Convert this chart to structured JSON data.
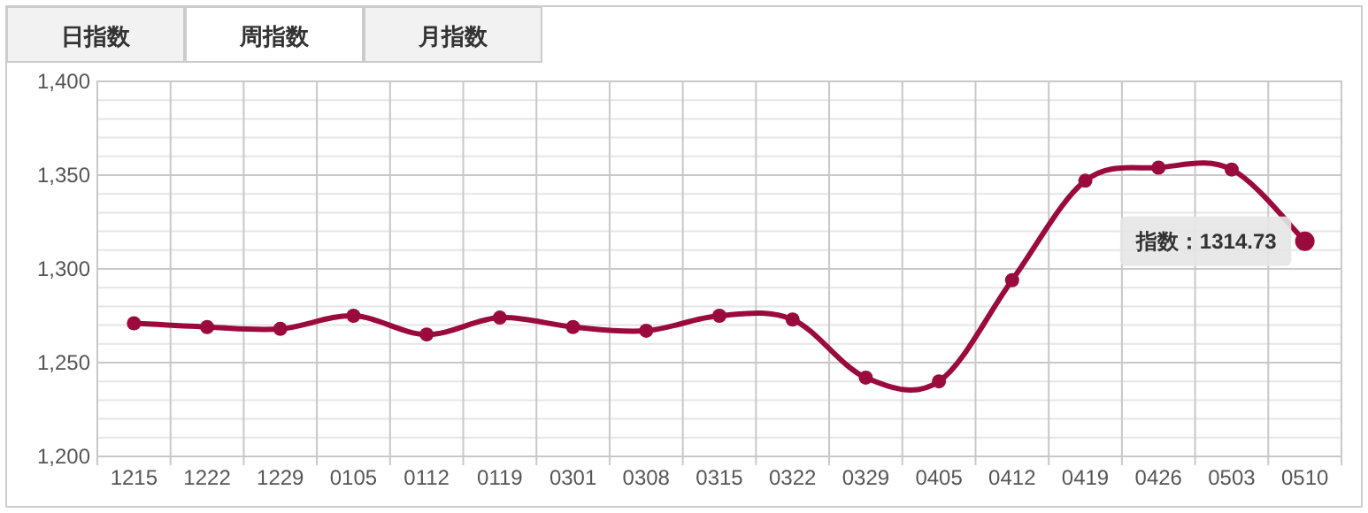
{
  "chart_data": {
    "type": "line",
    "categories": [
      "1215",
      "1222",
      "1229",
      "0105",
      "0112",
      "0119",
      "0301",
      "0308",
      "0315",
      "0322",
      "0329",
      "0405",
      "0412",
      "0419",
      "0426",
      "0503",
      "0510"
    ],
    "series": [
      {
        "color": "#9b0a3c",
        "values": [
          1271,
          1269,
          1268,
          1275,
          1265,
          1274,
          1269,
          1267,
          1275,
          1273,
          1242,
          1240,
          1294,
          1347,
          1354,
          1353,
          1314.73
        ]
      }
    ],
    "ylim": [
      1200,
      1400
    ],
    "yticks": [
      {
        "value": 1200,
        "label": "1,200"
      },
      {
        "value": 1210,
        "label": null
      },
      {
        "value": 1220,
        "label": null
      },
      {
        "value": 1230,
        "label": null
      },
      {
        "value": 1240,
        "label": null
      },
      {
        "value": 1250,
        "label": "1,250"
      },
      {
        "value": 1260,
        "label": null
      },
      {
        "value": 1270,
        "label": null
      },
      {
        "value": 1280,
        "label": null
      },
      {
        "value": 1290,
        "label": null
      },
      {
        "value": 1300,
        "label": "1,300"
      },
      {
        "value": 1310,
        "label": null
      },
      {
        "value": 1320,
        "label": null
      },
      {
        "value": 1330,
        "label": null
      },
      {
        "value": 1340,
        "label": null
      },
      {
        "value": 1350,
        "label": "1,350"
      },
      {
        "value": 1360,
        "label": null
      },
      {
        "value": 1370,
        "label": null
      },
      {
        "value": 1380,
        "label": null
      },
      {
        "value": 1390,
        "label": null
      },
      {
        "value": 1400,
        "label": "1,400"
      }
    ],
    "grid": true,
    "marker": "circle",
    "line_style": "solid",
    "annotations": [
      "日指数",
      "周指数",
      "月指数",
      {
        "text": "指数：1314.73",
        "x": "0510",
        "y": 1314.73
      }
    ]
  }
}
